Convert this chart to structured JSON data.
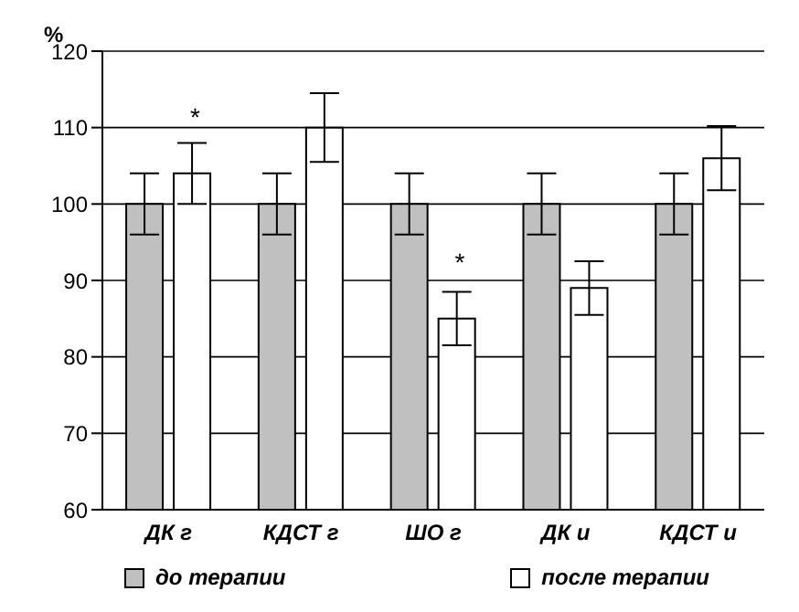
{
  "chart_data": {
    "type": "bar",
    "ylabel": "%",
    "categories": [
      "ДК г",
      "КДСТ г",
      "ШО г",
      "ДК и",
      "КДСТ и"
    ],
    "series": [
      {
        "name": "до терапии",
        "color": "#c0c0c0",
        "values": [
          100,
          100,
          100,
          100,
          100
        ],
        "errors": [
          4,
          4,
          4,
          4,
          4
        ]
      },
      {
        "name": "после терапии",
        "color": "#ffffff",
        "values": [
          104,
          110,
          85,
          89,
          106
        ],
        "errors": [
          4,
          4.5,
          3.5,
          3.5,
          4.2
        ]
      }
    ],
    "annotations": [
      {
        "text": "*",
        "x": "ДК г",
        "y": 104
      },
      {
        "text": "*",
        "x": "ШО г",
        "y": 85
      }
    ],
    "ylim": [
      60,
      120
    ],
    "yticks": [
      60,
      70,
      80,
      90,
      100,
      110,
      120
    ],
    "grid": "y",
    "legend": "bottom"
  }
}
